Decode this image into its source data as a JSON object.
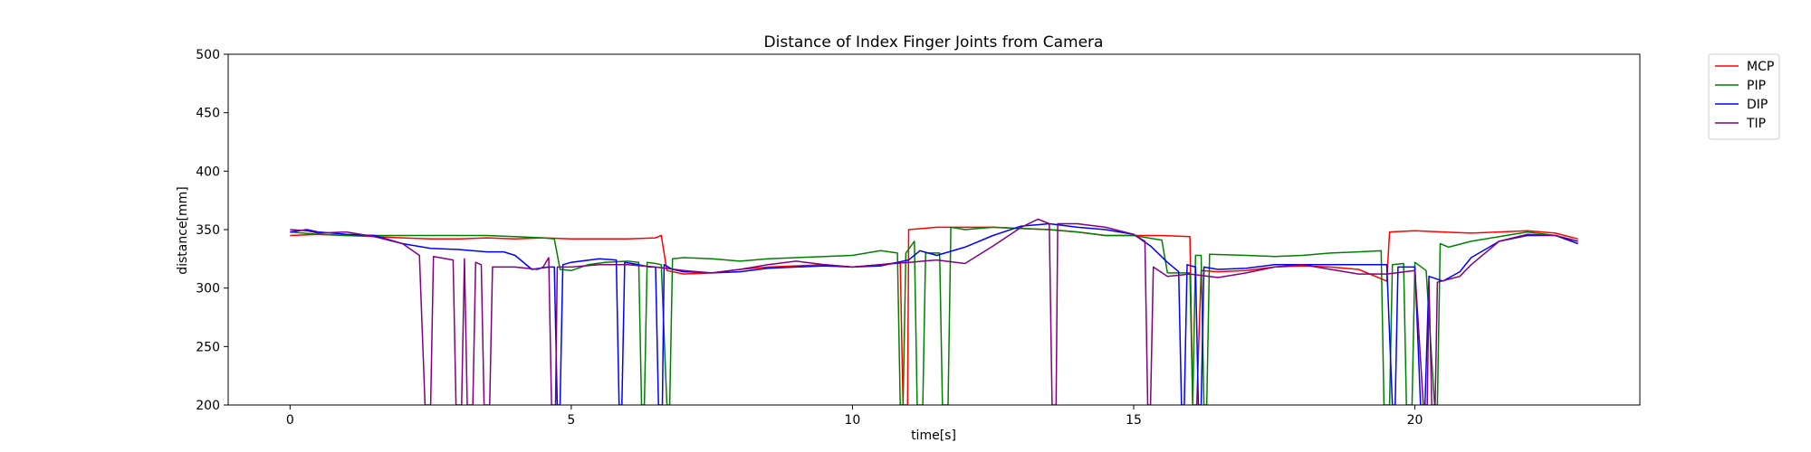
{
  "chart_data": {
    "type": "line",
    "title": "Distance of Index Finger Joints from Camera",
    "xlabel": "time[s]",
    "ylabel": "distance[mm]",
    "xlim": [
      -1.1,
      24.0
    ],
    "ylim": [
      200,
      500
    ],
    "xticks": [
      0,
      5,
      10,
      15,
      20
    ],
    "yticks": [
      200,
      250,
      300,
      350,
      400,
      450,
      500
    ],
    "grid": false,
    "legend_position": "outside-top-right",
    "series": [
      {
        "name": "MCP",
        "color": "#ff0000",
        "points": [
          [
            0,
            345
          ],
          [
            0.5,
            346
          ],
          [
            1,
            345
          ],
          [
            1.5,
            344
          ],
          [
            2,
            343
          ],
          [
            2.5,
            342
          ],
          [
            3,
            342
          ],
          [
            3.5,
            343
          ],
          [
            4,
            342
          ],
          [
            4.5,
            343
          ],
          [
            5,
            342
          ],
          [
            5.5,
            342
          ],
          [
            6,
            342
          ],
          [
            6.5,
            343
          ],
          [
            6.6,
            345
          ],
          [
            6.7,
            315
          ],
          [
            7,
            312
          ],
          [
            7.5,
            313
          ],
          [
            8,
            316
          ],
          [
            8.5,
            318
          ],
          [
            9,
            319
          ],
          [
            9.5,
            320
          ],
          [
            10,
            318
          ],
          [
            10.5,
            320
          ],
          [
            10.85,
            322
          ],
          [
            10.9,
            200
          ],
          [
            10.98,
            200
          ],
          [
            11,
            350
          ],
          [
            11.5,
            352
          ],
          [
            12,
            352
          ],
          [
            12.5,
            352
          ],
          [
            13,
            351
          ],
          [
            13.5,
            350
          ],
          [
            14,
            348
          ],
          [
            14.5,
            345
          ],
          [
            15,
            345
          ],
          [
            15.5,
            345
          ],
          [
            16,
            344
          ],
          [
            16.05,
            200
          ],
          [
            16.12,
            200
          ],
          [
            16.2,
            315
          ],
          [
            16.5,
            314
          ],
          [
            17,
            315
          ],
          [
            17.5,
            318
          ],
          [
            18,
            319
          ],
          [
            18.5,
            318
          ],
          [
            19,
            316
          ],
          [
            19.5,
            306
          ],
          [
            19.55,
            348
          ],
          [
            20,
            349
          ],
          [
            20.5,
            348
          ],
          [
            21,
            347
          ],
          [
            21.5,
            348
          ],
          [
            22,
            349
          ],
          [
            22.5,
            347
          ],
          [
            22.9,
            342
          ]
        ]
      },
      {
        "name": "PIP",
        "color": "#008000",
        "points": [
          [
            0,
            348
          ],
          [
            0.5,
            346
          ],
          [
            1,
            345
          ],
          [
            1.5,
            345
          ],
          [
            2,
            345
          ],
          [
            2.5,
            345
          ],
          [
            3,
            345
          ],
          [
            3.5,
            345
          ],
          [
            4,
            344
          ],
          [
            4.5,
            343
          ],
          [
            4.7,
            342
          ],
          [
            4.8,
            316
          ],
          [
            5,
            315
          ],
          [
            5.3,
            320
          ],
          [
            5.6,
            322
          ],
          [
            6,
            323
          ],
          [
            6.2,
            322
          ],
          [
            6.25,
            200
          ],
          [
            6.3,
            200
          ],
          [
            6.35,
            322
          ],
          [
            6.5,
            321
          ],
          [
            6.6,
            320
          ],
          [
            6.7,
            200
          ],
          [
            6.75,
            200
          ],
          [
            6.8,
            325
          ],
          [
            7,
            326
          ],
          [
            7.5,
            325
          ],
          [
            8,
            323
          ],
          [
            8.5,
            325
          ],
          [
            9,
            326
          ],
          [
            9.5,
            327
          ],
          [
            10,
            328
          ],
          [
            10.5,
            332
          ],
          [
            10.8,
            330
          ],
          [
            10.85,
            200
          ],
          [
            10.9,
            200
          ],
          [
            10.95,
            330
          ],
          [
            11.1,
            340
          ],
          [
            11.15,
            200
          ],
          [
            11.25,
            200
          ],
          [
            11.3,
            330
          ],
          [
            11.55,
            330
          ],
          [
            11.6,
            200
          ],
          [
            11.7,
            200
          ],
          [
            11.75,
            352
          ],
          [
            12,
            350
          ],
          [
            12.5,
            352
          ],
          [
            13,
            351
          ],
          [
            13.5,
            350
          ],
          [
            14,
            348
          ],
          [
            14.5,
            345
          ],
          [
            15,
            345
          ],
          [
            15.5,
            341
          ],
          [
            15.6,
            313
          ],
          [
            16,
            313
          ],
          [
            16.05,
            200
          ],
          [
            16.1,
            328
          ],
          [
            16.2,
            328
          ],
          [
            16.25,
            200
          ],
          [
            16.3,
            200
          ],
          [
            16.35,
            329
          ],
          [
            17,
            328
          ],
          [
            17.5,
            327
          ],
          [
            18,
            328
          ],
          [
            18.5,
            330
          ],
          [
            19,
            331
          ],
          [
            19.4,
            332
          ],
          [
            19.45,
            200
          ],
          [
            19.55,
            200
          ],
          [
            19.6,
            320
          ],
          [
            19.8,
            321
          ],
          [
            19.85,
            200
          ],
          [
            19.95,
            200
          ],
          [
            20,
            322
          ],
          [
            20.2,
            315
          ],
          [
            20.35,
            200
          ],
          [
            20.4,
            200
          ],
          [
            20.45,
            338
          ],
          [
            20.6,
            335
          ],
          [
            21,
            340
          ],
          [
            21.5,
            344
          ],
          [
            22,
            348
          ],
          [
            22.5,
            345
          ],
          [
            22.9,
            340
          ]
        ]
      },
      {
        "name": "DIP",
        "color": "#0000ff",
        "points": [
          [
            0,
            348
          ],
          [
            0.3,
            350
          ],
          [
            0.5,
            348
          ],
          [
            1,
            346
          ],
          [
            1.5,
            345
          ],
          [
            2,
            338
          ],
          [
            2.5,
            334
          ],
          [
            3,
            333
          ],
          [
            3.5,
            331
          ],
          [
            3.8,
            331
          ],
          [
            4,
            328
          ],
          [
            4.3,
            316
          ],
          [
            4.6,
            318
          ],
          [
            4.7,
            318
          ],
          [
            4.75,
            200
          ],
          [
            4.8,
            200
          ],
          [
            4.85,
            320
          ],
          [
            5,
            322
          ],
          [
            5.5,
            325
          ],
          [
            5.8,
            324
          ],
          [
            5.85,
            200
          ],
          [
            5.9,
            200
          ],
          [
            5.95,
            322
          ],
          [
            6.2,
            320
          ],
          [
            6.4,
            318
          ],
          [
            6.5,
            318
          ],
          [
            6.55,
            200
          ],
          [
            6.62,
            200
          ],
          [
            6.65,
            320
          ],
          [
            6.8,
            316
          ],
          [
            7,
            314
          ],
          [
            7.5,
            313
          ],
          [
            8,
            314
          ],
          [
            8.5,
            317
          ],
          [
            9,
            318
          ],
          [
            9.5,
            319
          ],
          [
            10,
            318
          ],
          [
            10.5,
            319
          ],
          [
            11,
            324
          ],
          [
            11.2,
            332
          ],
          [
            11.5,
            328
          ],
          [
            12,
            335
          ],
          [
            12.5,
            345
          ],
          [
            13,
            353
          ],
          [
            13.5,
            355
          ],
          [
            14,
            352
          ],
          [
            14.5,
            350
          ],
          [
            15,
            346
          ],
          [
            15.3,
            336
          ],
          [
            15.6,
            322
          ],
          [
            15.8,
            314
          ],
          [
            15.85,
            200
          ],
          [
            15.9,
            200
          ],
          [
            15.95,
            320
          ],
          [
            16.1,
            318
          ],
          [
            16.15,
            200
          ],
          [
            16.2,
            200
          ],
          [
            16.25,
            318
          ],
          [
            16.5,
            316
          ],
          [
            17,
            317
          ],
          [
            17.5,
            320
          ],
          [
            18,
            320
          ],
          [
            18.5,
            320
          ],
          [
            19,
            320
          ],
          [
            19.5,
            320
          ],
          [
            19.6,
            200
          ],
          [
            19.65,
            200
          ],
          [
            19.7,
            318
          ],
          [
            20,
            318
          ],
          [
            20.1,
            200
          ],
          [
            20.18,
            200
          ],
          [
            20.25,
            310
          ],
          [
            20.5,
            306
          ],
          [
            20.8,
            314
          ],
          [
            21,
            326
          ],
          [
            21.5,
            340
          ],
          [
            22,
            345
          ],
          [
            22.5,
            345
          ],
          [
            22.9,
            338
          ]
        ]
      },
      {
        "name": "TIP",
        "color": "#800080",
        "points": [
          [
            0,
            350
          ],
          [
            0.3,
            349
          ],
          [
            0.5,
            347
          ],
          [
            1,
            348
          ],
          [
            1.5,
            344
          ],
          [
            2,
            338
          ],
          [
            2.3,
            328
          ],
          [
            2.4,
            200
          ],
          [
            2.5,
            200
          ],
          [
            2.55,
            327
          ],
          [
            2.9,
            324
          ],
          [
            2.95,
            200
          ],
          [
            3.05,
            200
          ],
          [
            3.1,
            325
          ],
          [
            3.15,
            200
          ],
          [
            3.25,
            200
          ],
          [
            3.3,
            322
          ],
          [
            3.4,
            320
          ],
          [
            3.45,
            200
          ],
          [
            3.55,
            200
          ],
          [
            3.6,
            318
          ],
          [
            4,
            318
          ],
          [
            4.4,
            316
          ],
          [
            4.5,
            318
          ],
          [
            4.6,
            326
          ],
          [
            4.65,
            200
          ],
          [
            4.72,
            200
          ],
          [
            4.75,
            318
          ],
          [
            5,
            318
          ],
          [
            5.5,
            320
          ],
          [
            6,
            320
          ],
          [
            6.5,
            318
          ],
          [
            7,
            315
          ],
          [
            7.5,
            313
          ],
          [
            8,
            316
          ],
          [
            8.5,
            320
          ],
          [
            9,
            323
          ],
          [
            9.5,
            320
          ],
          [
            10,
            318
          ],
          [
            10.5,
            320
          ],
          [
            11,
            322
          ],
          [
            11.5,
            324
          ],
          [
            12,
            321
          ],
          [
            12.5,
            336
          ],
          [
            13,
            352
          ],
          [
            13.3,
            359
          ],
          [
            13.5,
            355
          ],
          [
            13.55,
            200
          ],
          [
            13.62,
            200
          ],
          [
            13.65,
            355
          ],
          [
            14,
            355
          ],
          [
            14.5,
            352
          ],
          [
            15,
            346
          ],
          [
            15.2,
            340
          ],
          [
            15.25,
            200
          ],
          [
            15.3,
            200
          ],
          [
            15.35,
            318
          ],
          [
            15.6,
            310
          ],
          [
            16,
            312
          ],
          [
            16.5,
            309
          ],
          [
            17,
            313
          ],
          [
            17.5,
            318
          ],
          [
            18,
            320
          ],
          [
            18.5,
            316
          ],
          [
            19,
            312
          ],
          [
            19.5,
            312
          ],
          [
            20,
            315
          ],
          [
            20.15,
            200
          ],
          [
            20.22,
            200
          ],
          [
            20.25,
            306
          ],
          [
            20.3,
            200
          ],
          [
            20.36,
            200
          ],
          [
            20.4,
            305
          ],
          [
            20.8,
            310
          ],
          [
            21,
            320
          ],
          [
            21.5,
            340
          ],
          [
            22,
            346
          ],
          [
            22.5,
            345
          ],
          [
            22.9,
            340
          ]
        ]
      }
    ]
  }
}
